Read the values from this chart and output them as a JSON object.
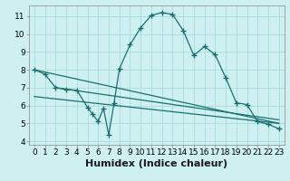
{
  "bg_color": "#cef0f0",
  "grid_color": "#a8dcdc",
  "line_color": "#1a7070",
  "marker": "+",
  "marker_size": 4,
  "marker_lw": 1.0,
  "xlim": [
    -0.5,
    23.5
  ],
  "ylim": [
    3.8,
    11.6
  ],
  "xlabel": "Humidex (Indice chaleur)",
  "xlabel_fontsize": 8,
  "yticks": [
    4,
    5,
    6,
    7,
    8,
    9,
    10,
    11
  ],
  "xticks": [
    0,
    1,
    2,
    3,
    4,
    5,
    6,
    7,
    8,
    9,
    10,
    11,
    12,
    13,
    14,
    15,
    16,
    17,
    18,
    19,
    20,
    21,
    22,
    23
  ],
  "tick_fontsize": 6.5,
  "line_width": 0.9,
  "series1_x": [
    0,
    1,
    2,
    3,
    4,
    5,
    5.5,
    6,
    6.5,
    7,
    7.5,
    8,
    9,
    10,
    11,
    12,
    13,
    14,
    15,
    16,
    17,
    18,
    19,
    20,
    21,
    22,
    23
  ],
  "series1_y": [
    8.0,
    7.75,
    7.0,
    6.9,
    6.85,
    5.9,
    5.5,
    5.1,
    5.85,
    4.35,
    6.15,
    8.05,
    9.4,
    10.35,
    11.05,
    11.2,
    11.1,
    10.2,
    8.8,
    9.3,
    8.85,
    7.55,
    6.15,
    6.05,
    5.1,
    4.95,
    4.7
  ],
  "series2_x": [
    0,
    23
  ],
  "series2_y": [
    8.0,
    5.0
  ],
  "series3_x": [
    2,
    23
  ],
  "series3_y": [
    7.0,
    5.2
  ],
  "series4_x": [
    0,
    23
  ],
  "series4_y": [
    6.5,
    5.0
  ]
}
